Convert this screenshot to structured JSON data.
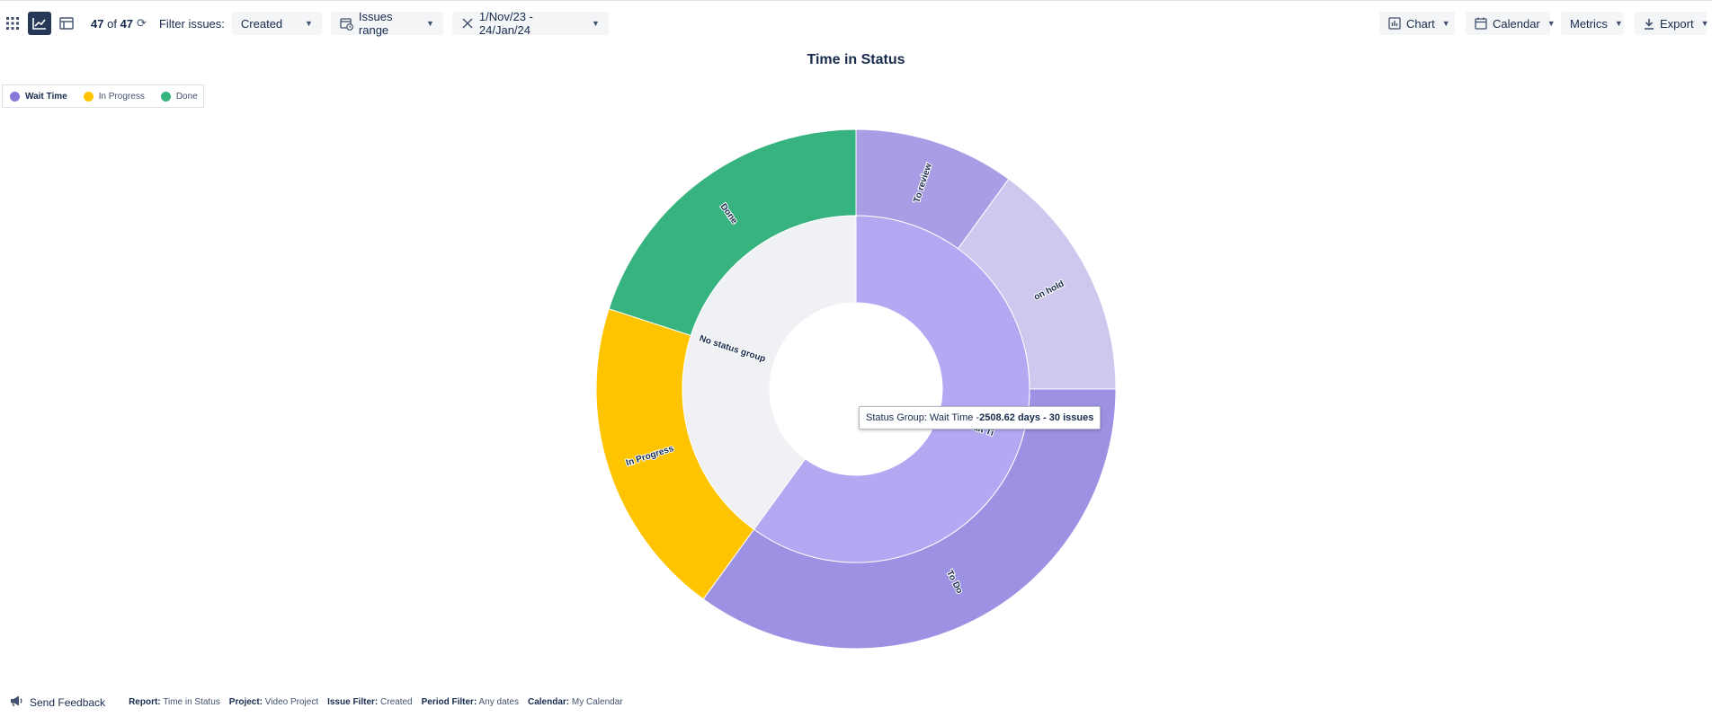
{
  "toolbar": {
    "count_current": "47",
    "count_of": "of",
    "count_total": "47",
    "filter_label": "Filter issues:",
    "filter_value": "Created",
    "issues_range_label": "Issues range",
    "date_range": "1/Nov/23 - 24/Jan/24",
    "chart_label": "Chart",
    "calendar_label": "Calendar",
    "metrics_label": "Metrics",
    "export_label": "Export"
  },
  "legend": [
    {
      "label": "Wait Time",
      "color": "#8777d9"
    },
    {
      "label": "In Progress",
      "color": "#ffc400"
    },
    {
      "label": "Done",
      "color": "#36b37e"
    }
  ],
  "tooltip": {
    "prefix": "Status Group: Wait Time - ",
    "value": "2508.62 days - 30 issues"
  },
  "chart_data": {
    "type": "pie",
    "title": "Time in Status",
    "inner": [
      {
        "name": "Wait Time",
        "share": 0.6,
        "color": "#b3a9f3"
      },
      {
        "name": "No status group",
        "share": 0.4,
        "color": "#eff1f4"
      }
    ],
    "outer": [
      {
        "name": "To review",
        "share": 0.1,
        "color": "#a99ee6"
      },
      {
        "name": "on hold",
        "share": 0.15,
        "color": "#cec8ef"
      },
      {
        "name": "To Do",
        "share": 0.35,
        "color": "#9c91e2"
      },
      {
        "name": "In Progress",
        "share": 0.2,
        "color": "#ffc400"
      },
      {
        "name": "Done",
        "share": 0.2,
        "color": "#36b37e"
      }
    ],
    "inner_labels": {
      "wait": "Wait Ti"
    }
  },
  "footer": {
    "feedback": "Send Feedback",
    "items": [
      {
        "key": "Report:",
        "value": "Time in Status"
      },
      {
        "key": "Project:",
        "value": "Video Project"
      },
      {
        "key": "Issue Filter:",
        "value": "Created"
      },
      {
        "key": "Period Filter:",
        "value": "Any dates"
      },
      {
        "key": "Calendar:",
        "value": "My Calendar"
      }
    ]
  }
}
